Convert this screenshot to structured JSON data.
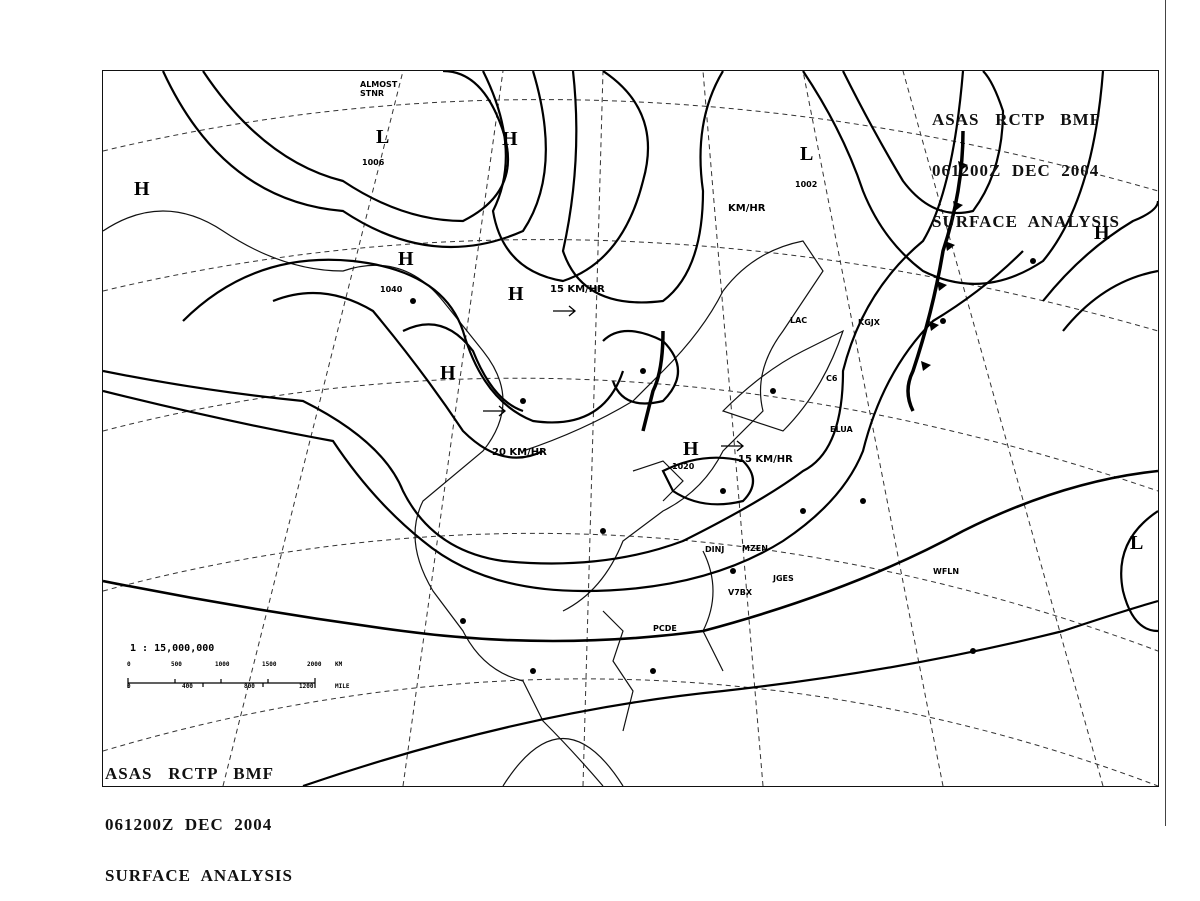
{
  "map": {
    "title_lines": [
      "ASAS   RCTP   BMF",
      "061200Z  DEC  2004",
      "SURFACE  ANALYSIS"
    ],
    "scale": {
      "ratio": "1 : 15,000,000",
      "km_ticks": [
        "0",
        "500",
        "1000",
        "1500",
        "2000",
        "KM"
      ],
      "mile_ticks": [
        "0",
        "400",
        "800",
        "1200",
        "MILE"
      ]
    },
    "pressure_systems": [
      {
        "type": "L",
        "label": "L"
      },
      {
        "type": "H",
        "label": "H"
      },
      {
        "type": "H",
        "label": "H"
      },
      {
        "type": "H",
        "label": "H"
      },
      {
        "type": "H",
        "label": "H"
      },
      {
        "type": "H",
        "label": "H"
      },
      {
        "type": "H",
        "label": "H"
      },
      {
        "type": "L",
        "label": "L"
      },
      {
        "type": "H",
        "label": "H"
      },
      {
        "type": "L",
        "label": "L"
      }
    ],
    "annotations": {
      "stnr": "ALMOST STNR",
      "motion_1": "15 KM/HR",
      "motion_2": "20 KM/HR",
      "motion_3": "15 KM/HR",
      "motion_4": "KM/HR",
      "isobar_1006": "1006",
      "isobar_1040": "1040",
      "isobar_1020": "1020",
      "isobar_1002": "1002"
    },
    "stations": [
      "DINJ",
      "MZEN",
      "V7BX",
      "JGES",
      "PCDE",
      "WFLN",
      "ELUA",
      "KGJX",
      "LAC",
      "C6"
    ]
  }
}
